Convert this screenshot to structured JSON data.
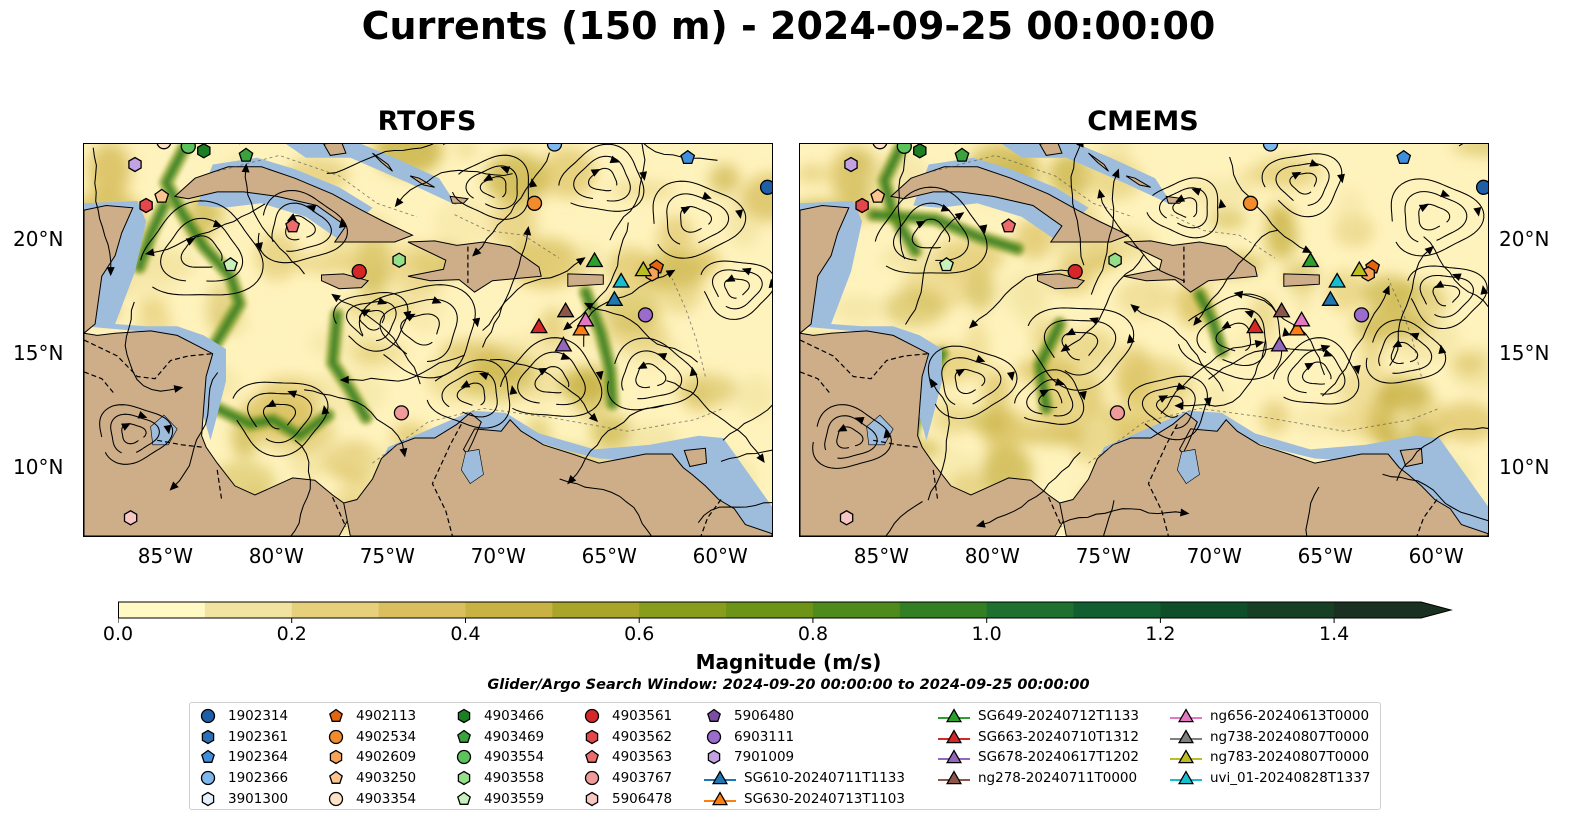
{
  "title": "Currents (150 m) - 2024-09-25 00:00:00",
  "panels": [
    {
      "title": "RTOFS"
    },
    {
      "title": "CMEMS"
    }
  ],
  "axes": {
    "lon_ticks": [
      "85°W",
      "80°W",
      "75°W",
      "70°W",
      "65°W",
      "60°W"
    ],
    "lat_ticks": [
      "20°N",
      "15°N",
      "10°N"
    ],
    "lon_range": [
      -89,
      -58
    ],
    "lat_range": [
      7,
      24.2
    ]
  },
  "colorbar": {
    "label": "Magnitude (m/s)",
    "ticks": [
      "0.0",
      "0.2",
      "0.4",
      "0.6",
      "0.8",
      "1.0",
      "1.2",
      "1.4"
    ],
    "range": [
      0,
      1.5
    ],
    "extend": "max",
    "colors": [
      "#fff9c4",
      "#f2e3a0",
      "#e6d07c",
      "#d9bf5e",
      "#c8b244",
      "#a9a52a",
      "#889d1c",
      "#6d9417",
      "#4f8a1d",
      "#327f24",
      "#1d7030",
      "#115f30",
      "#0e4f2a",
      "#163f24",
      "#1a3020"
    ]
  },
  "search_window": "Glider/Argo Search Window: 2024-09-20 00:00:00 to 2024-09-25 00:00:00",
  "map_colors": {
    "land": "#cdae88",
    "shelf": "#9ebcdc",
    "ocean_low": "#fff3bd"
  },
  "floats": [
    {
      "id": "1902314",
      "marker": "circle",
      "color": "#1f5fa8",
      "lon": -58.2,
      "lat": 22.3
    },
    {
      "id": "1902361",
      "marker": "hexagon",
      "color": "#2d6fb5",
      "lon": null,
      "lat": null
    },
    {
      "id": "1902364",
      "marker": "pentagon",
      "color": "#3f8fdc",
      "lon": -61.8,
      "lat": 23.6
    },
    {
      "id": "1902366",
      "marker": "circle",
      "color": "#7fb8ec",
      "lon": -67.8,
      "lat": 24.2
    },
    {
      "id": "3901300",
      "marker": "hexagon",
      "color": "#e4f0fb",
      "lon": null,
      "lat": null
    },
    {
      "id": "4902113",
      "marker": "pentagon",
      "color": "#e4650f",
      "lon": -63.2,
      "lat": 18.8
    },
    {
      "id": "4902534",
      "marker": "circle",
      "color": "#f28b2c",
      "lon": -68.7,
      "lat": 21.6
    },
    {
      "id": "4902609",
      "marker": "hexagon",
      "color": "#f7a45a",
      "lon": -63.4,
      "lat": 18.5
    },
    {
      "id": "4903250",
      "marker": "pentagon",
      "color": "#fbc58f",
      "lon": -85.5,
      "lat": 21.9
    },
    {
      "id": "4903354",
      "marker": "circle",
      "color": "#fde2c4",
      "lon": -85.4,
      "lat": 24.3
    },
    {
      "id": "4903466",
      "marker": "hexagon",
      "color": "#1c7f24",
      "lon": -83.6,
      "lat": 23.9
    },
    {
      "id": "4903469",
      "marker": "pentagon",
      "color": "#3ba33b",
      "lon": -81.7,
      "lat": 23.7
    },
    {
      "id": "4903554",
      "marker": "circle",
      "color": "#5cc25c",
      "lon": -84.3,
      "lat": 24.1
    },
    {
      "id": "4903558",
      "marker": "hexagon",
      "color": "#95de8a",
      "lon": -74.8,
      "lat": 19.1
    },
    {
      "id": "4903559",
      "marker": "pentagon",
      "color": "#c8f2bc",
      "lon": -82.4,
      "lat": 18.9
    },
    {
      "id": "4903561",
      "marker": "circle",
      "color": "#d62728",
      "lon": -76.6,
      "lat": 18.6
    },
    {
      "id": "4903562",
      "marker": "hexagon",
      "color": "#e2474a",
      "lon": -86.2,
      "lat": 21.5
    },
    {
      "id": "4903563",
      "marker": "pentagon",
      "color": "#ec6b6b",
      "lon": -79.6,
      "lat": 20.6
    },
    {
      "id": "4903767",
      "marker": "circle",
      "color": "#f09a9a",
      "lon": -74.7,
      "lat": 12.4
    },
    {
      "id": "5906478",
      "marker": "hexagon",
      "color": "#f7c7c4",
      "lon": -86.9,
      "lat": 7.8
    },
    {
      "id": "5906480",
      "marker": "pentagon",
      "color": "#7b4ea3",
      "lon": null,
      "lat": null
    },
    {
      "id": "6903111",
      "marker": "circle",
      "color": "#9b6ccc",
      "lon": -63.7,
      "lat": 16.7
    },
    {
      "id": "7901009",
      "marker": "hexagon",
      "color": "#c3a2e4",
      "lon": -86.7,
      "lat": 23.3
    }
  ],
  "gliders": [
    {
      "id": "SG610-20240711T1133",
      "color": "#1f77b4",
      "lon": -65.1,
      "lat": 17.4
    },
    {
      "id": "SG630-20240713T1103",
      "color": "#ff7f0e",
      "lon": -66.6,
      "lat": 16.1
    },
    {
      "id": "SG649-20240712T1133",
      "color": "#2ca02c",
      "lon": -66.0,
      "lat": 19.1
    },
    {
      "id": "SG663-20240710T1312",
      "color": "#d62728",
      "lon": -68.5,
      "lat": 16.2
    },
    {
      "id": "SG678-20240617T1202",
      "color": "#9467bd",
      "lon": -67.4,
      "lat": 15.4
    },
    {
      "id": "ng278-20240711T0000",
      "color": "#8c564b",
      "lon": -67.3,
      "lat": 16.9
    },
    {
      "id": "ng656-20240613T0000",
      "color": "#e377c2",
      "lon": -66.4,
      "lat": 16.5
    },
    {
      "id": "ng738-20240807T0000",
      "color": "#7f7f7f",
      "lon": null,
      "lat": null
    },
    {
      "id": "ng783-20240807T0000",
      "color": "#bcbd22",
      "lon": -63.8,
      "lat": 18.7
    },
    {
      "id": "uvi_01-20240828T1337",
      "color": "#17becf",
      "lon": -64.8,
      "lat": 18.2
    }
  ]
}
